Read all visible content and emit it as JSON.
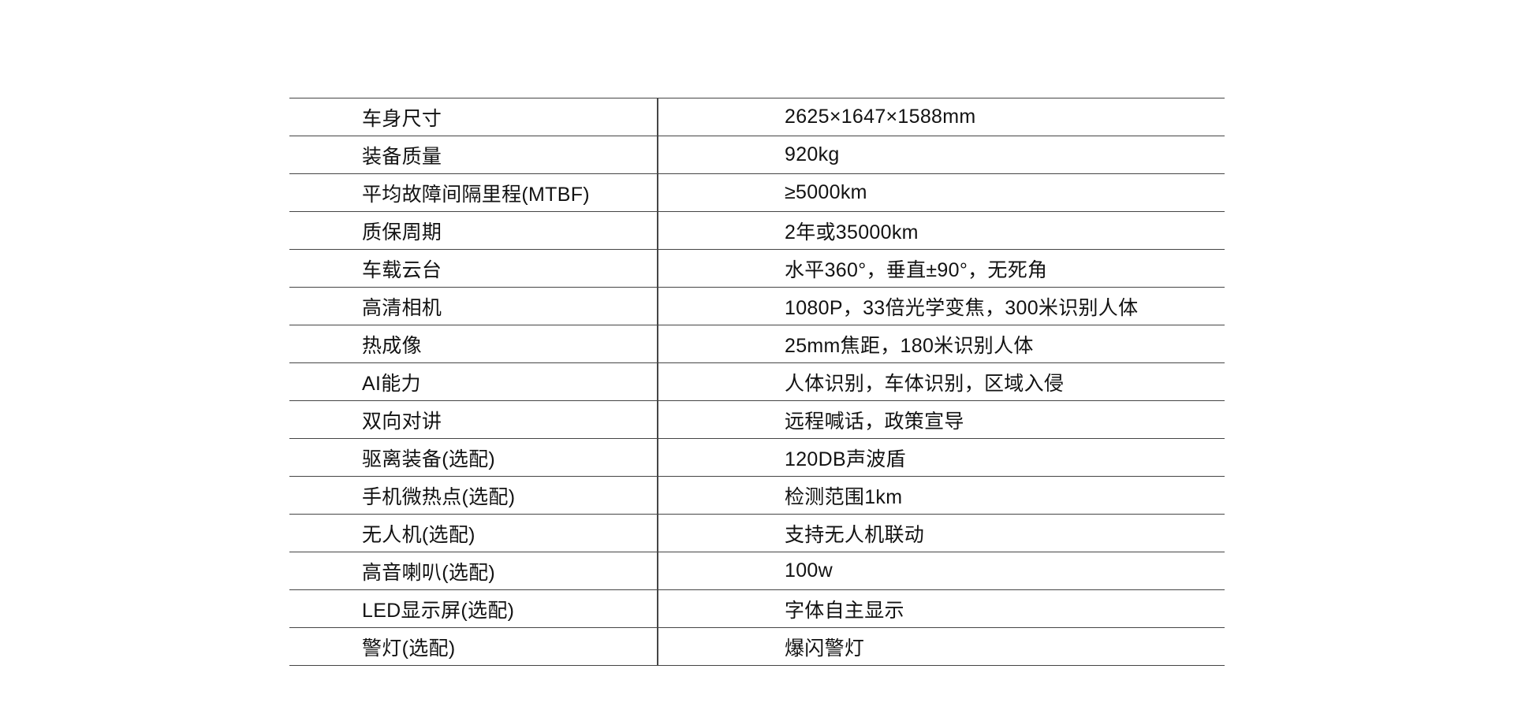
{
  "page": {
    "background_color": "#ffffff"
  },
  "spec_table": {
    "line_color": "#454545",
    "text_color": "#121212",
    "rows": [
      {
        "label": "车身尺寸",
        "value": "2625×1647×1588mm"
      },
      {
        "label": "装备质量",
        "value": "920kg"
      },
      {
        "label": "平均故障间隔里程(MTBF)",
        "value": "≥5000km"
      },
      {
        "label": "质保周期",
        "value": "2年或35000km"
      },
      {
        "label": "车载云台",
        "value": "水平360°，垂直±90°，无死角"
      },
      {
        "label": "高清相机",
        "value": "1080P，33倍光学变焦，300米识别人体"
      },
      {
        "label": "热成像",
        "value": "25mm焦距，180米识别人体"
      },
      {
        "label": "AI能力",
        "value": "人体识别，车体识别，区域入侵"
      },
      {
        "label": "双向对讲",
        "value": "远程喊话，政策宣导"
      },
      {
        "label": "驱离装备(选配)",
        "value": "120DB声波盾"
      },
      {
        "label": "手机微热点(选配)",
        "value": "检测范围1km"
      },
      {
        "label": "无人机(选配)",
        "value": "支持无人机联动"
      },
      {
        "label": "高音喇叭(选配)",
        "value": "100w"
      },
      {
        "label": "LED显示屏(选配)",
        "value": "字体自主显示"
      },
      {
        "label": "警灯(选配)",
        "value": "爆闪警灯"
      }
    ]
  }
}
